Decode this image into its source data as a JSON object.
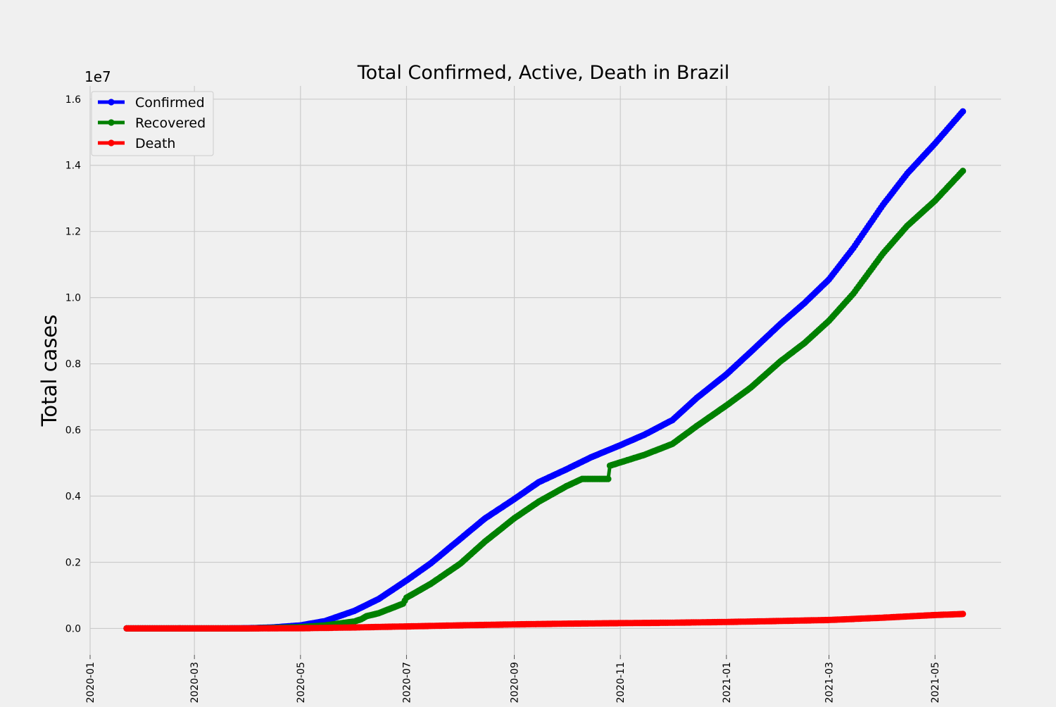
{
  "chart_data": {
    "type": "line",
    "title": "Total Confirmed, Active, Death in Brazil",
    "xlabel": "",
    "ylabel": "Total cases",
    "y_offset_label": "1e7",
    "y_scale_factor": 10000000,
    "ylim": [
      -0.08,
      1.64
    ],
    "xlim": [
      "2020-01-01",
      "2021-06-08"
    ],
    "grid": true,
    "legend_placement": "upper-left",
    "x_ticks": [
      {
        "date": "2020-01-01",
        "label": "2020-01"
      },
      {
        "date": "2020-03-01",
        "label": "2020-03"
      },
      {
        "date": "2020-05-01",
        "label": "2020-05"
      },
      {
        "date": "2020-07-01",
        "label": "2020-07"
      },
      {
        "date": "2020-09-01",
        "label": "2020-09"
      },
      {
        "date": "2020-11-01",
        "label": "2020-11"
      },
      {
        "date": "2021-01-01",
        "label": "2021-01"
      },
      {
        "date": "2021-03-01",
        "label": "2021-03"
      },
      {
        "date": "2021-05-01",
        "label": "2021-05"
      }
    ],
    "y_ticks": [
      {
        "value": 0.0,
        "label": "0.0"
      },
      {
        "value": 0.2,
        "label": "0.2"
      },
      {
        "value": 0.4,
        "label": "0.4"
      },
      {
        "value": 0.6,
        "label": "0.6"
      },
      {
        "value": 0.8,
        "label": "0.8"
      },
      {
        "value": 1.0,
        "label": "1.0"
      },
      {
        "value": 1.2,
        "label": "1.2"
      },
      {
        "value": 1.4,
        "label": "1.4"
      },
      {
        "value": 1.6,
        "label": "1.6"
      }
    ],
    "series": [
      {
        "name": "Confirmed",
        "color": "#0000ff",
        "points": [
          [
            "2020-01-22",
            0.0
          ],
          [
            "2020-02-26",
            0.0
          ],
          [
            "2020-03-20",
            0.0003
          ],
          [
            "2020-04-01",
            0.0007
          ],
          [
            "2020-04-15",
            0.003
          ],
          [
            "2020-05-01",
            0.0092
          ],
          [
            "2020-05-15",
            0.022
          ],
          [
            "2020-06-01",
            0.053
          ],
          [
            "2020-06-15",
            0.089
          ],
          [
            "2020-07-01",
            0.145
          ],
          [
            "2020-07-15",
            0.197
          ],
          [
            "2020-08-01",
            0.271
          ],
          [
            "2020-08-15",
            0.332
          ],
          [
            "2020-09-01",
            0.391
          ],
          [
            "2020-09-15",
            0.442
          ],
          [
            "2020-10-01",
            0.481
          ],
          [
            "2020-10-15",
            0.517
          ],
          [
            "2020-11-01",
            0.554
          ],
          [
            "2020-11-15",
            0.586
          ],
          [
            "2020-12-01",
            0.63
          ],
          [
            "2020-12-15",
            0.697
          ],
          [
            "2021-01-01",
            0.768
          ],
          [
            "2021-01-15",
            0.836
          ],
          [
            "2021-02-01",
            0.92
          ],
          [
            "2021-02-15",
            0.984
          ],
          [
            "2021-03-01",
            1.055
          ],
          [
            "2021-03-15",
            1.15
          ],
          [
            "2021-04-01",
            1.28
          ],
          [
            "2021-04-15",
            1.375
          ],
          [
            "2021-05-01",
            1.466
          ],
          [
            "2021-05-17",
            1.563
          ]
        ]
      },
      {
        "name": "Recovered",
        "color": "#008000",
        "points": [
          [
            "2020-01-22",
            0.0
          ],
          [
            "2020-04-01",
            0.0001
          ],
          [
            "2020-04-15",
            0.0015
          ],
          [
            "2020-05-01",
            0.004
          ],
          [
            "2020-05-15",
            0.009
          ],
          [
            "2020-06-01",
            0.021
          ],
          [
            "2020-06-05",
            0.028
          ],
          [
            "2020-06-08",
            0.037
          ],
          [
            "2020-06-15",
            0.046
          ],
          [
            "2020-06-29",
            0.075
          ],
          [
            "2020-07-01",
            0.093
          ],
          [
            "2020-07-15",
            0.135
          ],
          [
            "2020-08-01",
            0.196
          ],
          [
            "2020-08-15",
            0.262
          ],
          [
            "2020-09-01",
            0.333
          ],
          [
            "2020-09-15",
            0.383
          ],
          [
            "2020-10-01",
            0.43
          ],
          [
            "2020-10-10",
            0.452
          ],
          [
            "2020-10-25",
            0.452
          ],
          [
            "2020-10-26",
            0.492
          ],
          [
            "2020-11-15",
            0.525
          ],
          [
            "2020-12-01",
            0.558
          ],
          [
            "2020-12-15",
            0.612
          ],
          [
            "2021-01-01",
            0.674
          ],
          [
            "2021-01-15",
            0.728
          ],
          [
            "2021-02-01",
            0.807
          ],
          [
            "2021-02-15",
            0.863
          ],
          [
            "2021-03-01",
            0.93
          ],
          [
            "2021-03-15",
            1.012
          ],
          [
            "2021-04-01",
            1.133
          ],
          [
            "2021-04-15",
            1.217
          ],
          [
            "2021-05-01",
            1.293
          ],
          [
            "2021-05-17",
            1.383
          ]
        ]
      },
      {
        "name": "Death",
        "color": "#ff0000",
        "points": [
          [
            "2020-01-22",
            0.0
          ],
          [
            "2020-04-01",
            3e-05
          ],
          [
            "2020-05-01",
            0.0006
          ],
          [
            "2020-06-01",
            0.003
          ],
          [
            "2020-07-01",
            0.0061
          ],
          [
            "2020-08-01",
            0.0094
          ],
          [
            "2020-09-01",
            0.0122
          ],
          [
            "2020-10-01",
            0.0144
          ],
          [
            "2020-11-01",
            0.016
          ],
          [
            "2020-12-01",
            0.0173
          ],
          [
            "2021-01-01",
            0.0195
          ],
          [
            "2021-02-01",
            0.0225
          ],
          [
            "2021-03-01",
            0.0255
          ],
          [
            "2021-04-01",
            0.0325
          ],
          [
            "2021-05-01",
            0.0405
          ],
          [
            "2021-05-17",
            0.0436
          ]
        ]
      }
    ]
  }
}
